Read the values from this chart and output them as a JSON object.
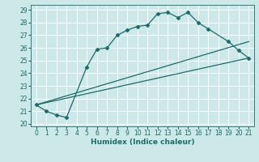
{
  "xlabel": "Humidex (Indice chaleur)",
  "bg_color": "#cde8e8",
  "grid_color": "#ffffff",
  "line_color": "#1a6b6b",
  "ylim": [
    19.8,
    29.4
  ],
  "xlim": [
    -0.5,
    21.5
  ],
  "yticks": [
    20,
    21,
    22,
    23,
    24,
    25,
    26,
    27,
    28,
    29
  ],
  "xticks": [
    0,
    1,
    2,
    3,
    4,
    5,
    6,
    7,
    8,
    9,
    10,
    11,
    12,
    13,
    14,
    15,
    16,
    17,
    18,
    19,
    20,
    21
  ],
  "series": [
    {
      "x": [
        0,
        1,
        2,
        3,
        5,
        6,
        7,
        8,
        9,
        10,
        11,
        12,
        13,
        14,
        15,
        16,
        17,
        19,
        20,
        21
      ],
      "y": [
        21.5,
        21.0,
        20.7,
        20.5,
        24.5,
        25.9,
        26.0,
        27.0,
        27.4,
        27.7,
        27.8,
        28.7,
        28.8,
        28.4,
        28.8,
        28.0,
        27.5,
        26.5,
        25.8,
        25.2
      ],
      "marker": "D",
      "markersize": 2.5
    },
    {
      "x": [
        0,
        21
      ],
      "y": [
        21.5,
        26.5
      ],
      "marker": null
    },
    {
      "x": [
        0,
        21
      ],
      "y": [
        21.5,
        25.2
      ],
      "marker": null
    }
  ],
  "ytick_labels": [
    "20",
    "21",
    "22",
    "23",
    "24",
    "25",
    "26",
    "27",
    "28",
    "29"
  ],
  "xtick_labels": [
    "0",
    "1",
    "2",
    "3",
    "4",
    "5",
    "6",
    "7",
    "8",
    "9",
    "10",
    "11",
    "12",
    "13",
    "14",
    "15",
    "16",
    "17",
    "18",
    "19",
    "20",
    "21"
  ],
  "xlabel_fontsize": 6.5,
  "tick_fontsize": 5.5,
  "linewidth": 0.9
}
